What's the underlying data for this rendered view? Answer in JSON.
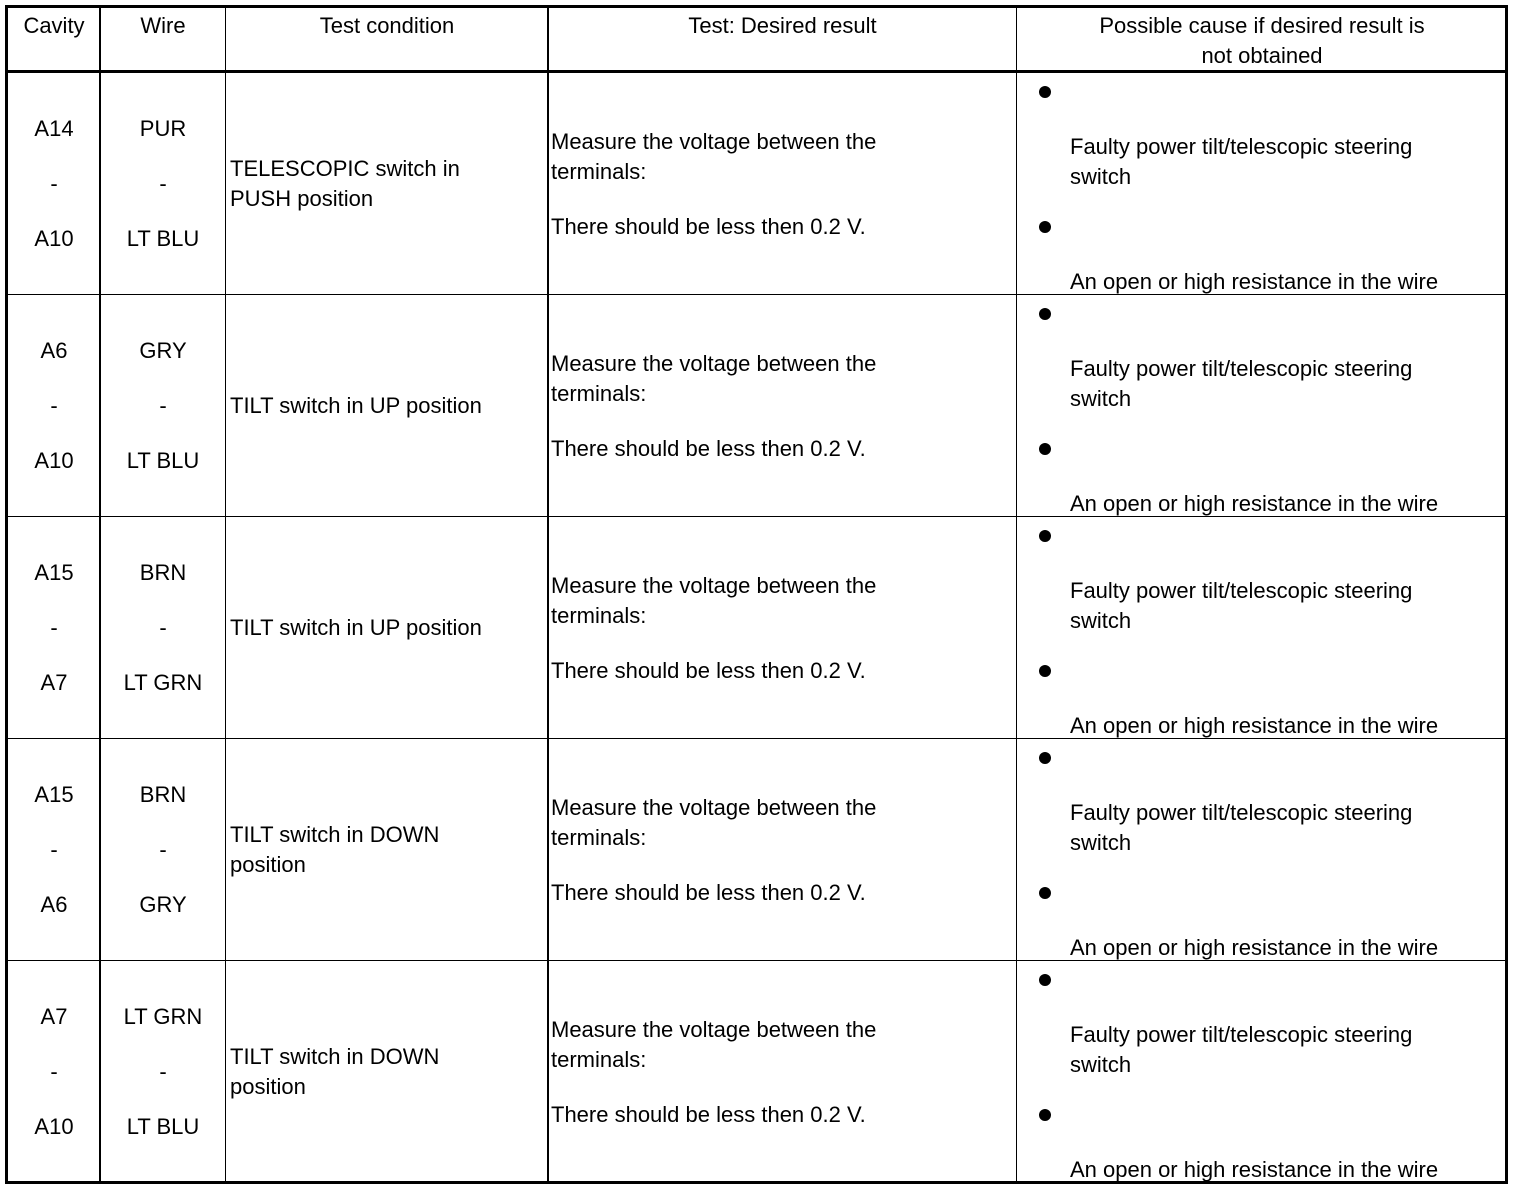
{
  "headers": {
    "cavity": "Cavity",
    "wire": "Wire",
    "test_condition": "Test condition",
    "desired_result": "Test: Desired result",
    "possible_cause_line1": "Possible cause if desired result is",
    "possible_cause_line2": "not obtained"
  },
  "rows": [
    {
      "cavity_from": "A14",
      "cavity_sep": "-",
      "cavity_to": "A10",
      "wire_from": "PUR",
      "wire_sep": "-",
      "wire_to": "LT BLU",
      "condition": [
        "TELESCOPIC switch in",
        "PUSH position"
      ],
      "result": [
        "Measure the voltage between the",
        "terminals:"
      ],
      "result_value": "There should be less then 0.2 V.",
      "cause1": [
        "Faulty power tilt/telescopic steering",
        "switch"
      ],
      "cause2": "An open or high resistance in the wire"
    },
    {
      "cavity_from": "A6",
      "cavity_sep": "-",
      "cavity_to": "A10",
      "wire_from": "GRY",
      "wire_sep": "-",
      "wire_to": "LT BLU",
      "condition": [
        "TILT switch in UP position"
      ],
      "result": [
        "Measure the voltage between the",
        "terminals:"
      ],
      "result_value": "There should be less then 0.2 V.",
      "cause1": [
        "Faulty power tilt/telescopic steering",
        "switch"
      ],
      "cause2": "An open or high resistance in the wire"
    },
    {
      "cavity_from": "A15",
      "cavity_sep": "-",
      "cavity_to": "A7",
      "wire_from": "BRN",
      "wire_sep": "-",
      "wire_to": "LT GRN",
      "condition": [
        "TILT switch in UP position"
      ],
      "result": [
        "Measure the voltage between the",
        "terminals:"
      ],
      "result_value": "There should be less then 0.2 V.",
      "cause1": [
        "Faulty power tilt/telescopic steering",
        "switch"
      ],
      "cause2": "An open or high resistance in the wire"
    },
    {
      "cavity_from": "A15",
      "cavity_sep": "-",
      "cavity_to": "A6",
      "wire_from": "BRN",
      "wire_sep": "-",
      "wire_to": "GRY",
      "condition": [
        "TILT switch in DOWN",
        "position"
      ],
      "result": [
        "Measure the voltage between the",
        "terminals:"
      ],
      "result_value": "There should be less then 0.2 V.",
      "cause1": [
        "Faulty power tilt/telescopic steering",
        "switch"
      ],
      "cause2": "An open or high resistance in the wire"
    },
    {
      "cavity_from": "A7",
      "cavity_sep": "-",
      "cavity_to": "A10",
      "wire_from": "LT GRN",
      "wire_sep": "-",
      "wire_to": "LT BLU",
      "condition": [
        "TILT switch in DOWN",
        "position"
      ],
      "result": [
        "Measure the voltage between the",
        "terminals:"
      ],
      "result_value": "There should be less then 0.2 V.",
      "cause1": [
        "Faulty power tilt/telescopic steering",
        "switch"
      ],
      "cause2": "An open or high resistance in the wire"
    }
  ]
}
